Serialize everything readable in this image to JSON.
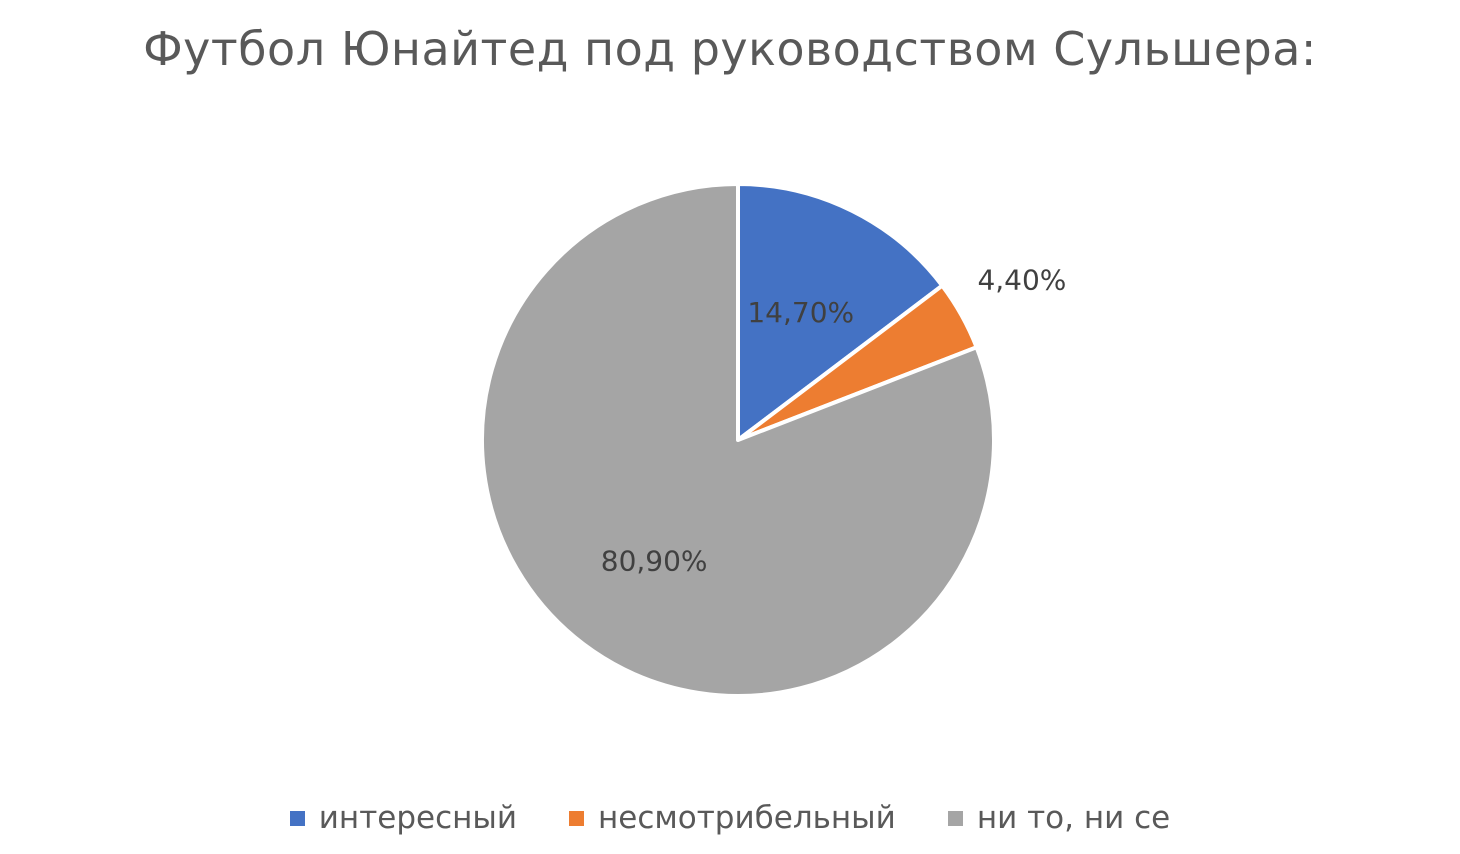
{
  "chart_data": {
    "type": "pie",
    "title": "Футбол Юнайтед под руководством Сульшера:",
    "legend_position": "bottom",
    "categories": [
      "интересный",
      "несмотрибельный",
      "ни то, ни се"
    ],
    "values": [
      14.7,
      4.4,
      80.9
    ],
    "data_labels": [
      "14,70%",
      "4,40%",
      "80,90%"
    ],
    "colors": [
      "#4472C4",
      "#ED7D31",
      "#A5A5A5"
    ]
  }
}
